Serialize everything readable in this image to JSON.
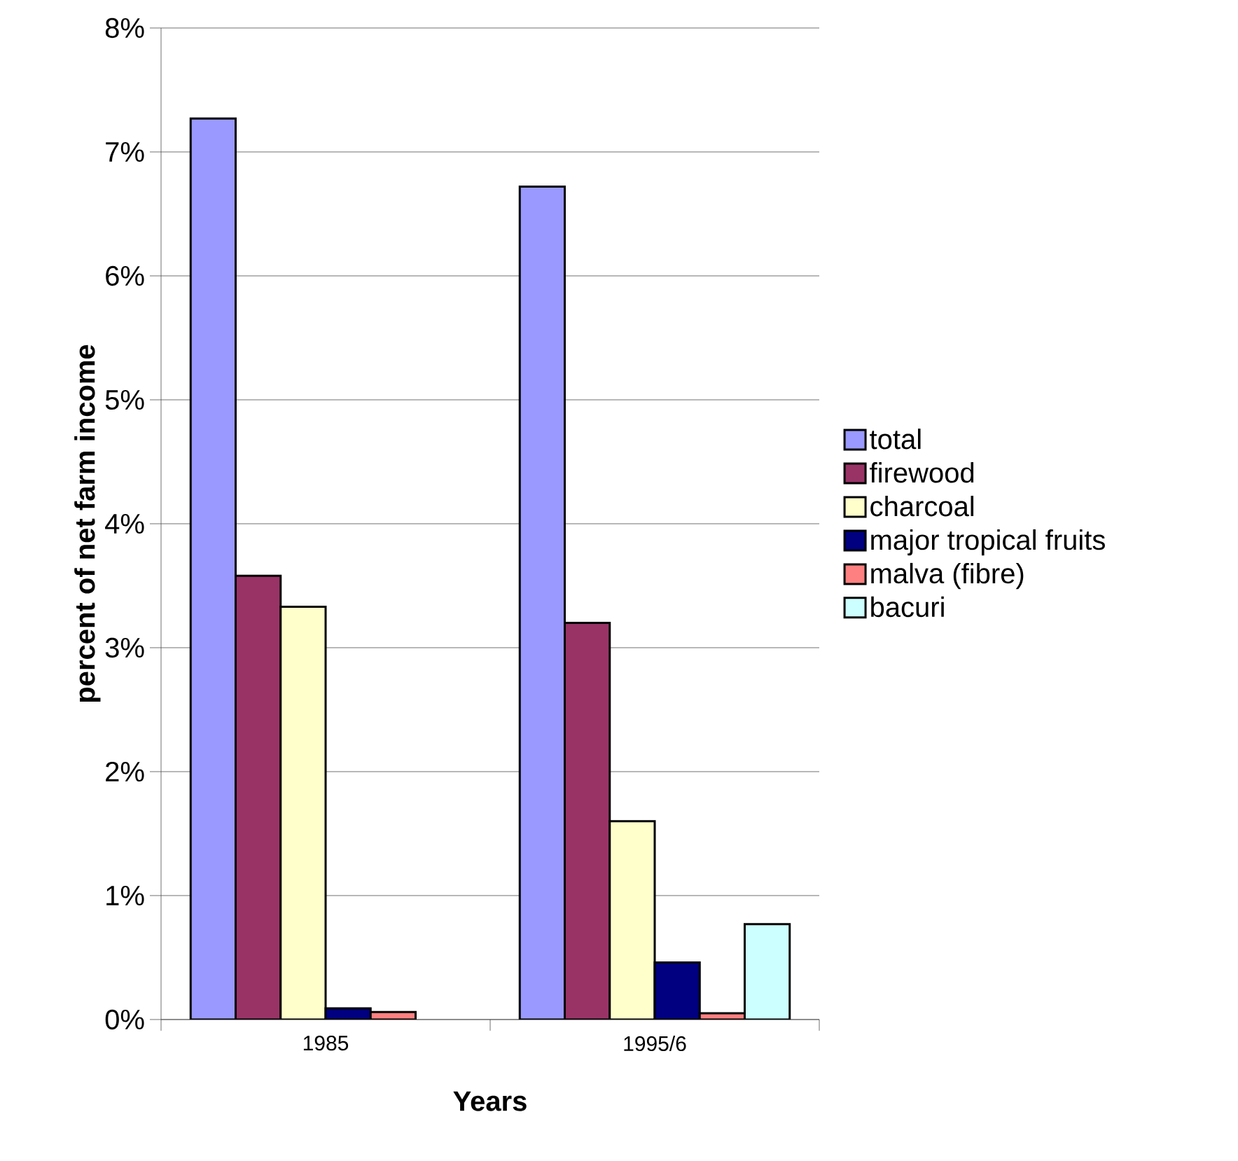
{
  "chart_data": {
    "type": "bar",
    "xlabel": "Years",
    "ylabel": "percent of net farm income",
    "categories": [
      "1985",
      "1995/6"
    ],
    "series": [
      {
        "name": "total",
        "color": "#9999ff",
        "values": [
          7.27,
          6.72
        ]
      },
      {
        "name": "firewood",
        "color": "#993366",
        "values": [
          3.58,
          3.2
        ]
      },
      {
        "name": "charcoal",
        "color": "#ffffcc",
        "values": [
          3.33,
          1.6
        ]
      },
      {
        "name": "major tropical fruits",
        "color": "#000080",
        "values": [
          0.09,
          0.46
        ]
      },
      {
        "name": "malva (fibre)",
        "color": "#ff8080",
        "values": [
          0.06,
          0.05
        ]
      },
      {
        "name": "bacuri",
        "color": "#ccffff",
        "values": [
          null,
          0.77
        ]
      }
    ],
    "ylim": [
      0,
      8
    ],
    "yticks": [
      {
        "value": 0,
        "label": "0%"
      },
      {
        "value": 1,
        "label": "1%"
      },
      {
        "value": 2,
        "label": "2%"
      },
      {
        "value": 3,
        "label": "3%"
      },
      {
        "value": 4,
        "label": "4%"
      },
      {
        "value": 5,
        "label": "5%"
      },
      {
        "value": 6,
        "label": "6%"
      },
      {
        "value": 7,
        "label": "7%"
      },
      {
        "value": 8,
        "label": "8%"
      }
    ],
    "grid": "y",
    "legend": "right"
  }
}
